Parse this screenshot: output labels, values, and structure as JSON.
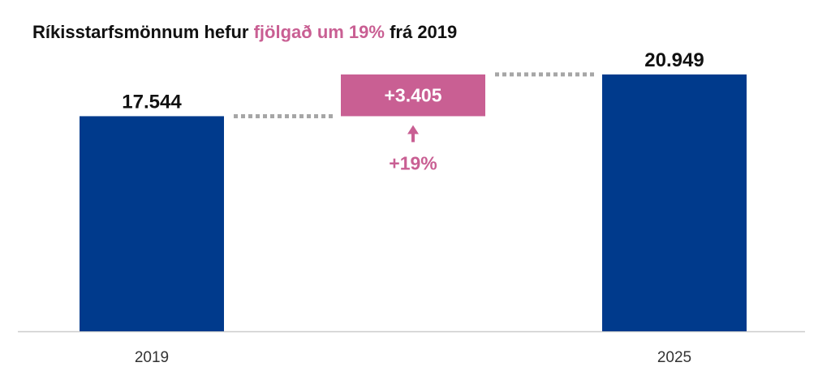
{
  "title": {
    "prefix": "Ríkisstarfsmönnum hefur ",
    "highlight": "fjölgað um 19%",
    "suffix": " frá 2019"
  },
  "colors": {
    "bar": "#003a8c",
    "increase": "#c95f93",
    "connector": "#a6a6a6",
    "axis": "#cccccc",
    "text": "#111111"
  },
  "chart_data": {
    "type": "bar",
    "subtype": "waterfall",
    "categories": [
      "2019",
      "",
      "2025"
    ],
    "values": [
      17544,
      3405,
      20949
    ],
    "value_labels": [
      "17.544",
      "+3.405",
      "20.949"
    ],
    "increase_annotation": "+19%",
    "ylim": [
      0,
      22000
    ],
    "grid": false,
    "legend": "none"
  }
}
